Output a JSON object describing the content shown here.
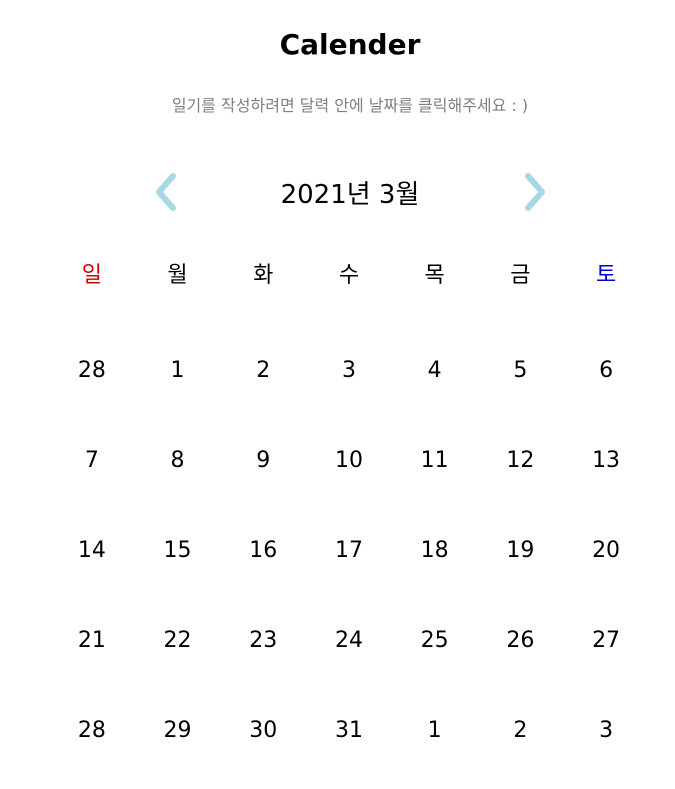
{
  "header": {
    "title": "Calender",
    "subtitle": "일기를 작성하려면 달력 안에 날짜를 클릭해주세요 : )"
  },
  "nav": {
    "month_label": "2021년 3월",
    "prev_icon": "chevron-left-icon",
    "next_icon": "chevron-right-icon",
    "arrow_color": "#a8d8e4"
  },
  "colors": {
    "sunday": "#cc0000",
    "saturday": "#0000cc",
    "text": "#000000",
    "subtitle": "#7f7f7f"
  },
  "weekdays": [
    "일",
    "월",
    "화",
    "수",
    "목",
    "금",
    "토"
  ],
  "weeks": [
    [
      "28",
      "1",
      "2",
      "3",
      "4",
      "5",
      "6"
    ],
    [
      "7",
      "8",
      "9",
      "10",
      "11",
      "12",
      "13"
    ],
    [
      "14",
      "15",
      "16",
      "17",
      "18",
      "19",
      "20"
    ],
    [
      "21",
      "22",
      "23",
      "24",
      "25",
      "26",
      "27"
    ],
    [
      "28",
      "29",
      "30",
      "31",
      "1",
      "2",
      "3"
    ]
  ]
}
